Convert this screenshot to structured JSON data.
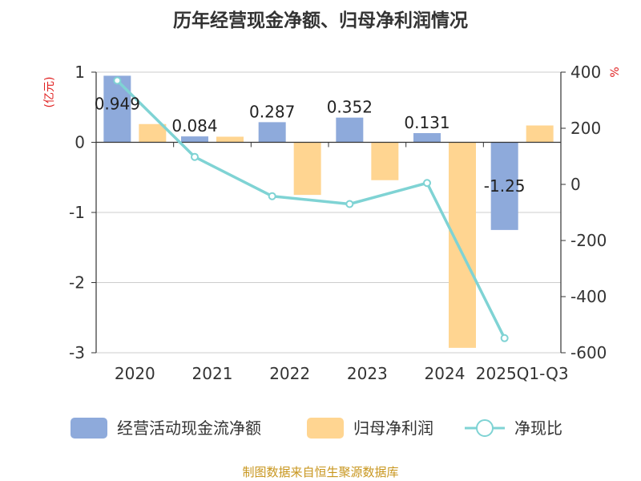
{
  "title": "历年经营现金净额、归母净利润情况",
  "source": "制图数据来自恒生聚源数据库",
  "chart_data": {
    "type": "bar",
    "categories": [
      "2020",
      "2021",
      "2022",
      "2023",
      "2024",
      "2025Q1-Q3"
    ],
    "series": [
      {
        "name": "经营活动现金流净额",
        "axis": "left",
        "type": "bar",
        "color": "#8eaadb",
        "values": [
          0.949,
          0.084,
          0.287,
          0.352,
          0.131,
          -1.25
        ],
        "labels": [
          "0.949",
          "0.084",
          "0.287",
          "0.352",
          "0.131",
          "-1.25"
        ]
      },
      {
        "name": "归母净利润",
        "axis": "left",
        "type": "bar",
        "color": "#ffd591",
        "values": [
          0.26,
          0.08,
          -0.75,
          -0.54,
          -2.93,
          0.24
        ]
      },
      {
        "name": "净现比",
        "axis": "right",
        "type": "line",
        "color": "#7fd3d4",
        "values": [
          370,
          98,
          -42,
          -70,
          5,
          -548
        ]
      }
    ],
    "y_left": {
      "label": "(亿元)",
      "ticks": [
        "1",
        "0",
        "-1",
        "-2",
        "-3"
      ],
      "range": [
        -3,
        1
      ]
    },
    "y_right": {
      "label": "%",
      "ticks": [
        "400",
        "200",
        "0",
        "-200",
        "-400",
        "-600"
      ],
      "range": [
        -600,
        400
      ]
    },
    "grid": true,
    "legend_position": "bottom"
  }
}
